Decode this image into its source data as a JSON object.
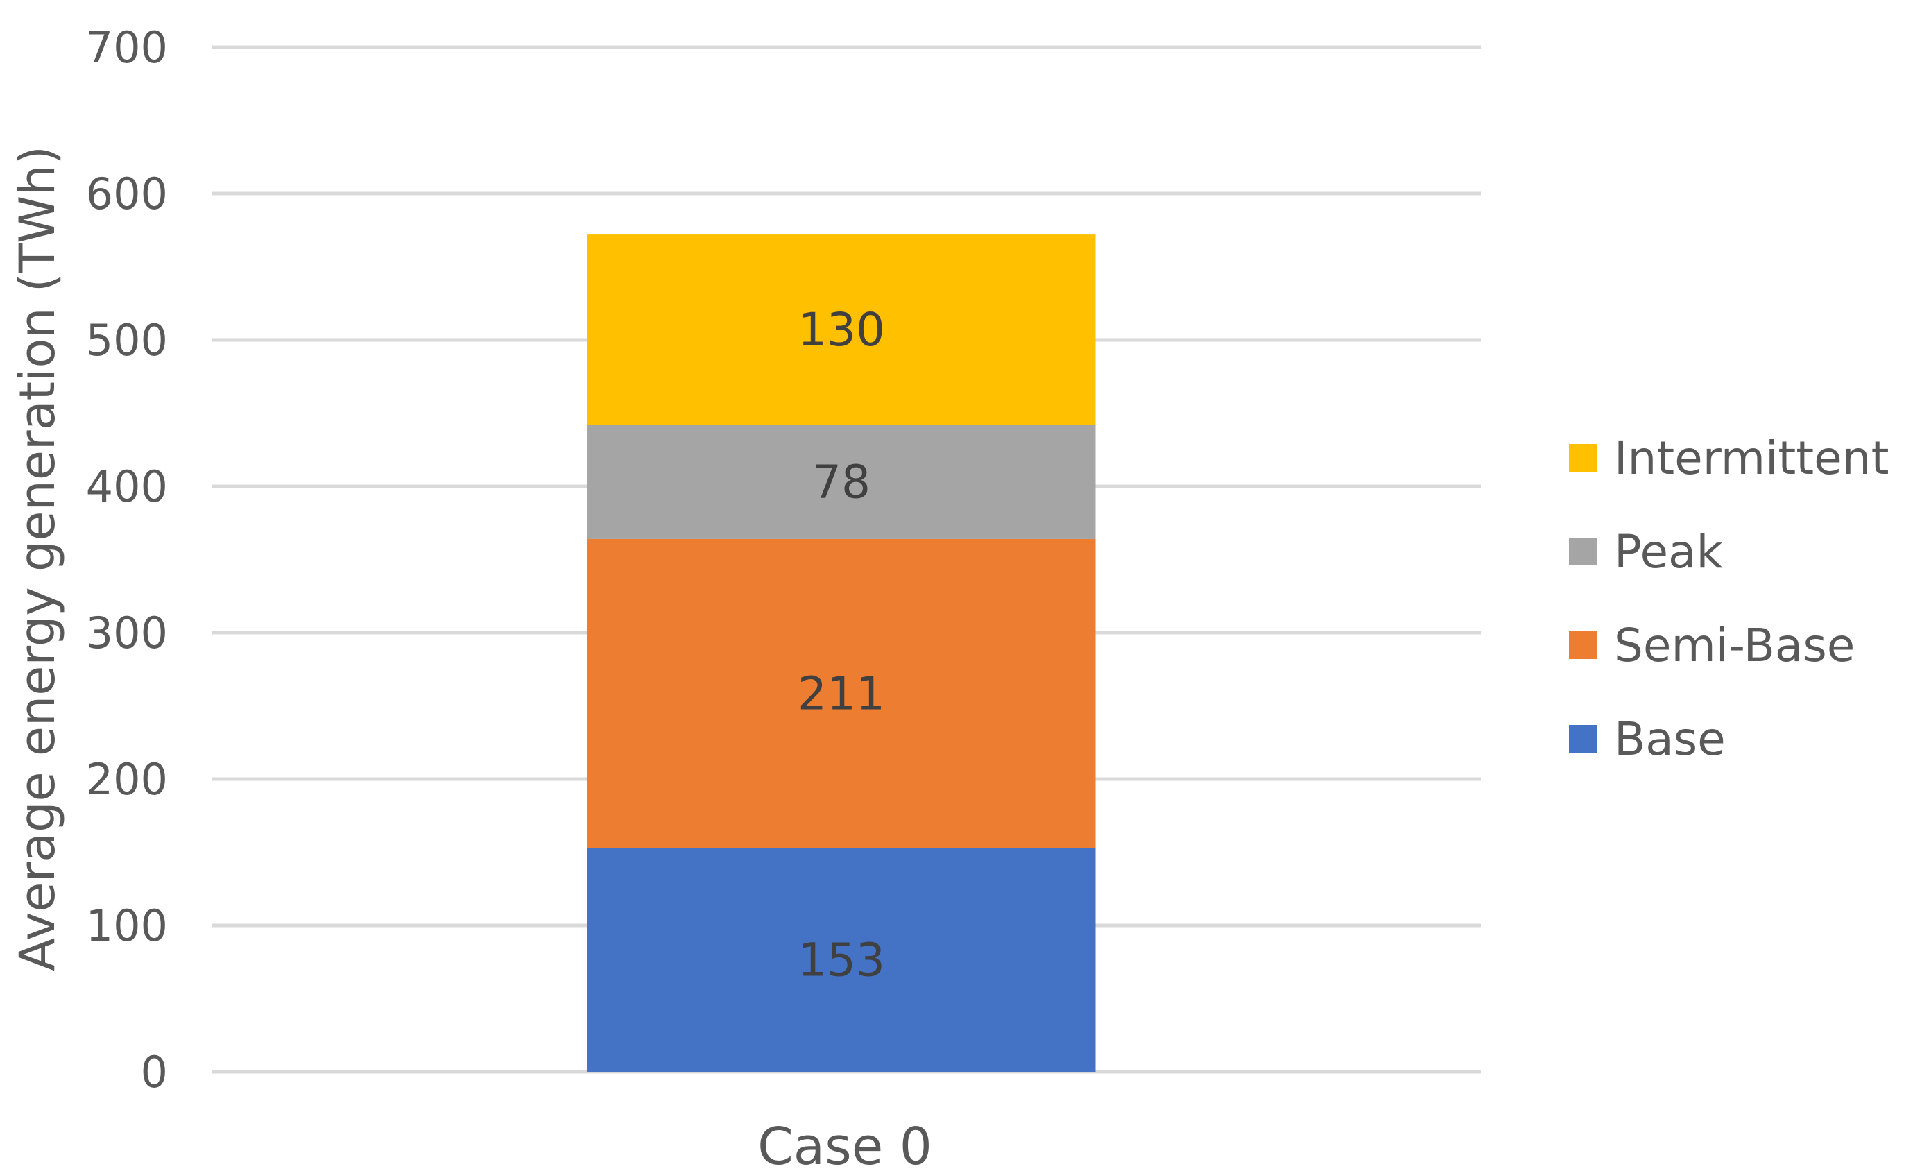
{
  "chart_data": {
    "type": "bar",
    "stacked": true,
    "categories": [
      "Case 0"
    ],
    "series": [
      {
        "name": "Base",
        "values": [
          153
        ],
        "color": "#4472C4"
      },
      {
        "name": "Semi-Base",
        "values": [
          211
        ],
        "color": "#ED7D31"
      },
      {
        "name": "Peak",
        "values": [
          78
        ],
        "color": "#A5A5A5"
      },
      {
        "name": "Intermittent",
        "values": [
          130
        ],
        "color": "#FFC000"
      }
    ],
    "title": "",
    "xlabel": "",
    "ylabel": "Average energy generation (TWh)",
    "ylim": [
      0,
      700
    ],
    "yticks": [
      0,
      100,
      200,
      300,
      400,
      500,
      600,
      700
    ],
    "grid": true,
    "legend_position": "right",
    "data_labels": true,
    "gridline_color": "#D9D9D9"
  }
}
